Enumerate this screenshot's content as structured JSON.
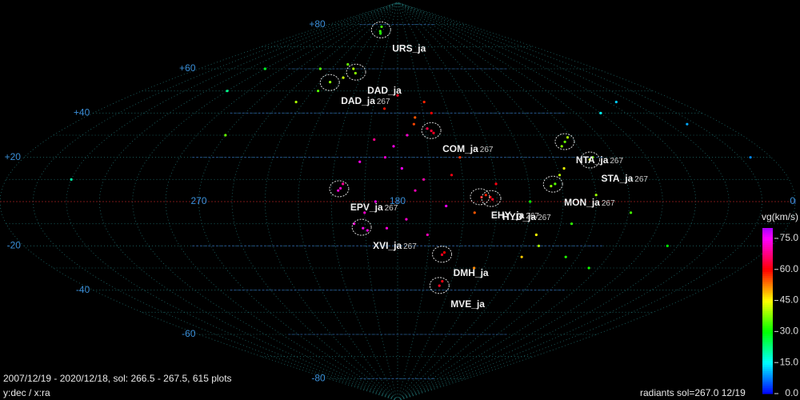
{
  "chart_data": {
    "type": "scatter",
    "xlim": [
      360,
      0
    ],
    "ylim": [
      -90,
      90
    ],
    "xticks": [
      270,
      180,
      0
    ],
    "yticks": [
      {
        "value": 80,
        "label": "+80"
      },
      {
        "value": 60,
        "label": "+60"
      },
      {
        "value": 40,
        "label": "+40"
      },
      {
        "value": 20,
        "label": "+20"
      },
      {
        "value": -20,
        "label": "-20"
      },
      {
        "value": -40,
        "label": "-40"
      },
      {
        "value": -60,
        "label": "-60"
      },
      {
        "value": -80,
        "label": "-80"
      }
    ],
    "x": [
      215,
      218,
      212,
      216,
      220,
      232,
      228,
      224,
      236,
      162,
      161,
      164,
      163,
      160,
      170,
      175,
      182,
      186,
      178,
      168,
      172,
      190,
      195,
      200,
      205,
      158,
      150,
      155,
      185,
      192,
      198,
      176,
      166,
      171,
      188,
      180,
      206,
      207,
      196,
      194,
      142,
      140,
      137,
      138,
      145,
      135,
      158,
      157,
      156,
      155,
      95,
      98,
      92,
      88,
      86,
      108,
      110,
      105,
      100,
      115,
      112,
      96,
      90,
      102,
      120,
      60,
      40,
      20,
      300,
      300,
      270,
      250,
      245,
      330,
      10,
      50,
      74,
      80,
      118,
      140
    ],
    "y": [
      77,
      79,
      76,
      58,
      60,
      54,
      62,
      56,
      50,
      32,
      31,
      33,
      45,
      40,
      38,
      30,
      25,
      20,
      15,
      10,
      5,
      0,
      -5,
      -10,
      8,
      -2,
      20,
      12,
      -12,
      28,
      18,
      -8,
      -15,
      35,
      42,
      48,
      6,
      5,
      -12,
      -13,
      2,
      3,
      1,
      2,
      -5,
      8,
      -24,
      -23,
      -38,
      -36,
      27,
      25,
      29,
      19,
      20,
      8,
      7,
      12,
      -10,
      -15,
      -20,
      -25,
      3,
      15,
      0,
      40,
      45,
      35,
      50,
      60,
      30,
      60,
      45,
      10,
      20,
      -20,
      -5,
      -30,
      -25,
      -30
    ],
    "values": [
      33,
      34,
      32,
      38,
      40,
      38,
      36,
      42,
      35,
      63,
      62,
      64,
      58,
      60,
      55,
      72,
      74,
      73,
      75,
      70,
      71,
      74,
      72,
      73,
      69,
      75,
      57,
      61,
      73,
      68,
      74,
      72,
      71,
      56,
      59,
      62,
      72,
      73,
      74,
      73,
      60,
      58,
      62,
      60,
      55,
      61,
      62,
      60,
      62,
      61,
      36,
      38,
      40,
      42,
      37,
      35,
      38,
      41,
      33,
      45,
      40,
      32,
      39,
      44,
      30,
      15,
      12,
      10,
      22,
      28,
      36,
      35,
      40,
      20,
      8,
      30,
      34,
      31,
      48,
      52
    ],
    "vlim": [
      0,
      80
    ],
    "vticks": [
      {
        "value": 75,
        "label": "75.0"
      },
      {
        "value": 60,
        "label": "60.0"
      },
      {
        "value": 45,
        "label": "45.0"
      },
      {
        "value": 30,
        "label": "30.0"
      },
      {
        "value": 15,
        "label": "15.0"
      },
      {
        "value": 0,
        "label": "0.0"
      }
    ],
    "colorbar_title": "vg(km/s)",
    "showers": [
      {
        "name": "URS_ja",
        "ra": 215,
        "dec": 77.6
      },
      {
        "name": "DAD_ja",
        "sol": "267",
        "ra": 232,
        "dec": 53.8
      },
      {
        "name": "DAD_ja",
        "ra": 216,
        "dec": 58.5
      },
      {
        "name": "COM_ja",
        "sol": "267",
        "ra": 162,
        "dec": 32.1
      },
      {
        "name": "NTA_ja",
        "sol": "267",
        "ra": 95,
        "dec": 27.1
      },
      {
        "name": "STA_ja",
        "sol": "267",
        "ra": 88,
        "dec": 18.8
      },
      {
        "name": "MON_ja",
        "sol": "267",
        "ra": 109,
        "dec": 7.9
      },
      {
        "name": "EPV_ja",
        "sol": "267",
        "ra": 206.6,
        "dec": 5.8
      },
      {
        "name": "EHY_ja",
        "sol": "267",
        "ra": 142.7,
        "dec": 2.2
      },
      {
        "name": "HYD_ja",
        "sol": "267",
        "ra": 137.6,
        "dec": 1.4
      },
      {
        "name": "XVI_ja",
        "sol": "267",
        "ra": 196.6,
        "dec": -11.6
      },
      {
        "name": "DMH_ja",
        "ra": 158,
        "dec": -23.8
      },
      {
        "name": "MVE_ja",
        "ra": 156,
        "dec": -37.9
      }
    ],
    "footer_left": "2007/12/19 - 2020/12/18,  sol: 266.5 - 267.5, 615 plots",
    "axes_note": "y:dec / x:ra",
    "footer_right": "radiants sol=267.0 12/19"
  }
}
